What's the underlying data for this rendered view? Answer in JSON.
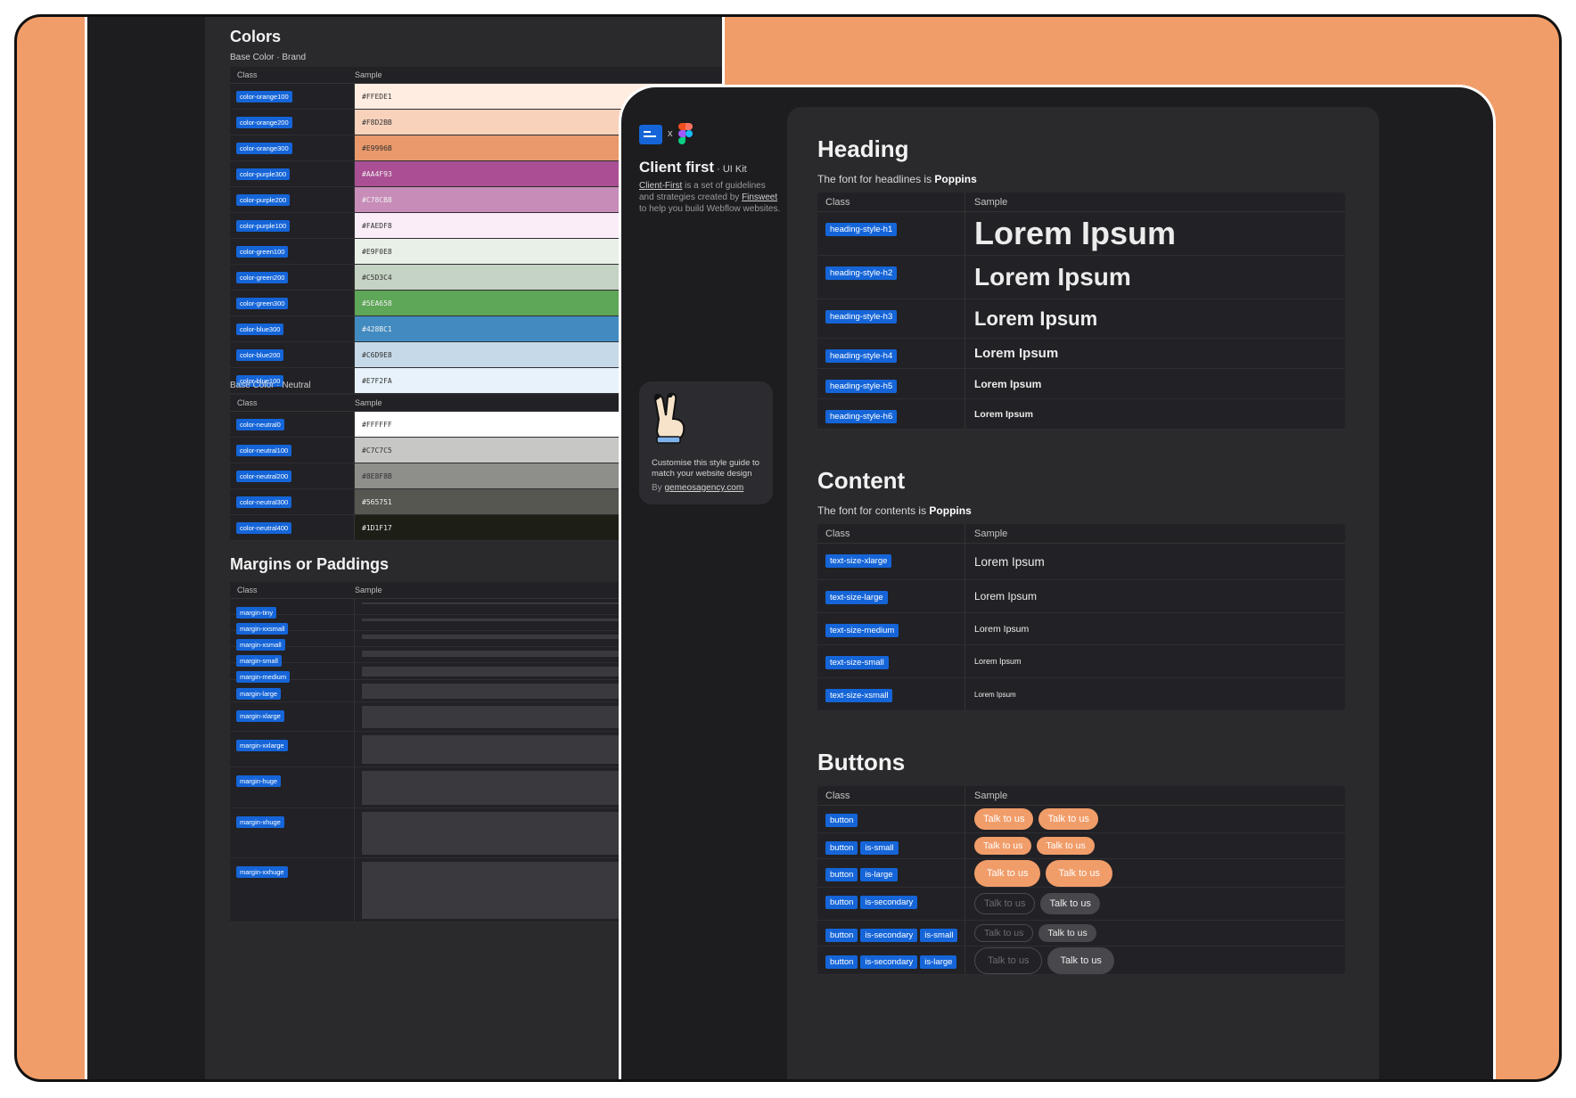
{
  "back": {
    "colors_title": "Colors",
    "brand_sub": "Base Color · Brand",
    "neutral_sub": "Base Color · Neutral",
    "col_class": "Class",
    "col_sample": "Sample",
    "brand": [
      {
        "cls": "color-orange100",
        "hex": "#FFEDE1",
        "color": "#FFEDE1",
        "dark": false
      },
      {
        "cls": "color-orange200",
        "hex": "#F8D2BB",
        "color": "#F8D2BB",
        "dark": false
      },
      {
        "cls": "color-orange300",
        "hex": "#E9996B",
        "color": "#E9996B",
        "dark": false
      },
      {
        "cls": "color-purple300",
        "hex": "#AA4F93",
        "color": "#AA4F93",
        "dark": true
      },
      {
        "cls": "color-purple200",
        "hex": "#C78CB8",
        "color": "#C78CB8",
        "dark": true
      },
      {
        "cls": "color-purple100",
        "hex": "#FAEDF8",
        "color": "#FAEDF8",
        "dark": false
      },
      {
        "cls": "color-green100",
        "hex": "#E9F0E8",
        "color": "#E9F0E8",
        "dark": false
      },
      {
        "cls": "color-green200",
        "hex": "#C5D3C4",
        "color": "#C5D3C4",
        "dark": false
      },
      {
        "cls": "color-green300",
        "hex": "#5EA658",
        "color": "#5EA658",
        "dark": true
      },
      {
        "cls": "color-blue300",
        "hex": "#428BC1",
        "color": "#428BC1",
        "dark": true
      },
      {
        "cls": "color-blue200",
        "hex": "#C6D9E8",
        "color": "#C6D9E8",
        "dark": false
      },
      {
        "cls": "color-blue100",
        "hex": "#E7F2FA",
        "color": "#E7F2FA",
        "dark": false
      }
    ],
    "neutral": [
      {
        "cls": "color-neutral0",
        "hex": "#FFFFFF",
        "color": "#FFFFFF",
        "dark": false
      },
      {
        "cls": "color-neutral100",
        "hex": "#C7C7C5",
        "color": "#C7C7C5",
        "dark": false
      },
      {
        "cls": "color-neutral200",
        "hex": "#8E8F8B",
        "color": "#8E8F8B",
        "dark": false
      },
      {
        "cls": "color-neutral300",
        "hex": "#565751",
        "color": "#565751",
        "dark": true
      },
      {
        "cls": "color-neutral400",
        "hex": "#1D1F17",
        "color": "#1D1F17",
        "dark": true
      }
    ],
    "margins_title": "Margins or Paddings",
    "margins": [
      {
        "cls": "margin-tiny",
        "size": 2
      },
      {
        "cls": "margin-xxsmall",
        "size": 3
      },
      {
        "cls": "margin-xsmall",
        "size": 5
      },
      {
        "cls": "margin-small",
        "size": 7
      },
      {
        "cls": "margin-medium",
        "size": 11
      },
      {
        "cls": "margin-large",
        "size": 17
      },
      {
        "cls": "margin-xlarge",
        "size": 25
      },
      {
        "cls": "margin-xxlarge",
        "size": 32
      },
      {
        "cls": "margin-huge",
        "size": 38
      },
      {
        "cls": "margin-xhuge",
        "size": 48
      },
      {
        "cls": "margin-xxhuge",
        "size": 64
      }
    ]
  },
  "side": {
    "x": "x",
    "title": "Client first",
    "subtitle": " · UI Kit",
    "desc_link1": "Client-First",
    "desc_mid": " is a set of guidelines and strategies created by ",
    "desc_link2": "Finsweet",
    "desc_end": " to help you build Webflow websites.",
    "card_text": "Customise this style guide to match your website design",
    "card_by": "By ",
    "card_link": "gemeosagency.com"
  },
  "heading": {
    "title": "Heading",
    "sub": "The font for headlines is ",
    "font": "Poppins",
    "col_class": "Class",
    "col_sample": "Sample",
    "rows": [
      {
        "cls": "heading-style-h1",
        "text": "Lorem Ipsum",
        "size": 36,
        "h": 49
      },
      {
        "cls": "heading-style-h2",
        "text": "Lorem Ipsum",
        "size": 28,
        "h": 49
      },
      {
        "cls": "heading-style-h3",
        "text": "Lorem Ipsum",
        "size": 22,
        "h": 44
      },
      {
        "cls": "heading-style-h4",
        "text": "Lorem Ipsum",
        "size": 15,
        "h": 34
      },
      {
        "cls": "heading-style-h5",
        "text": "Lorem Ipsum",
        "size": 12,
        "h": 34
      },
      {
        "cls": "heading-style-h6",
        "text": "Lorem Ipsum",
        "size": 10.5,
        "h": 34
      }
    ]
  },
  "content": {
    "title": "Content",
    "sub": "The font for contents is ",
    "font": "Poppins",
    "col_class": "Class",
    "col_sample": "Sample",
    "rows": [
      {
        "cls": "text-size-xlarge",
        "text": "Lorem Ipsum",
        "size": 13.5,
        "h": 41
      },
      {
        "cls": "text-size-large",
        "text": "Lorem Ipsum",
        "size": 12,
        "h": 37
      },
      {
        "cls": "text-size-medium",
        "text": "Lorem Ipsum",
        "size": 10.5,
        "h": 36
      },
      {
        "cls": "text-size-small",
        "text": "Lorem Ipsum",
        "size": 9,
        "h": 37
      },
      {
        "cls": "text-size-xsmall",
        "text": "Lorem Ipsum",
        "size": 8,
        "h": 37
      }
    ]
  },
  "buttons": {
    "title": "Buttons",
    "col_class": "Class",
    "col_sample": "Sample",
    "rows": [
      {
        "tags": [
          "button"
        ],
        "variant": "primary",
        "size": "md",
        "label": "Talk to us"
      },
      {
        "tags": [
          "button",
          "is-small"
        ],
        "variant": "primary",
        "size": "sm",
        "label": "Talk to us"
      },
      {
        "tags": [
          "button",
          "is-large"
        ],
        "variant": "primary",
        "size": "lg",
        "label": "Talk to us"
      },
      {
        "tags": [
          "button",
          "is-secondary"
        ],
        "variant": "secondary",
        "size": "md",
        "label": "Talk to us"
      },
      {
        "tags": [
          "button",
          "is-secondary",
          "is-small"
        ],
        "variant": "secondary",
        "size": "sm",
        "label": "Talk to us"
      },
      {
        "tags": [
          "button",
          "is-secondary",
          "is-large"
        ],
        "variant": "secondary",
        "size": "lg",
        "label": "Talk to us"
      }
    ]
  }
}
